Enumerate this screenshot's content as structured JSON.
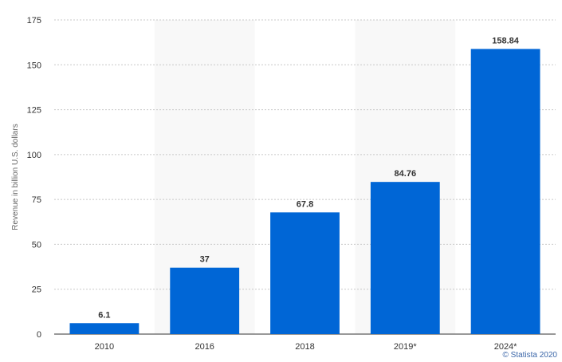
{
  "chart_data": {
    "type": "bar",
    "categories": [
      "2010",
      "2016",
      "2018",
      "2019*",
      "2024*"
    ],
    "series": [
      {
        "values": [
          6.1,
          37,
          67.8,
          84.76,
          158.84
        ]
      }
    ],
    "data_labels": [
      "6.1",
      "37",
      "67.8",
      "84.76",
      "158.84"
    ],
    "xlabel": "",
    "ylabel": "Revenue in billion U.S. dollars",
    "ylim": [
      0,
      175
    ],
    "yticks": [
      0,
      25,
      50,
      75,
      100,
      125,
      150,
      175
    ],
    "grid": true,
    "bar_color": "#0066d6",
    "band_color": "#f8f8f8"
  },
  "credit": "© Statista 2020"
}
